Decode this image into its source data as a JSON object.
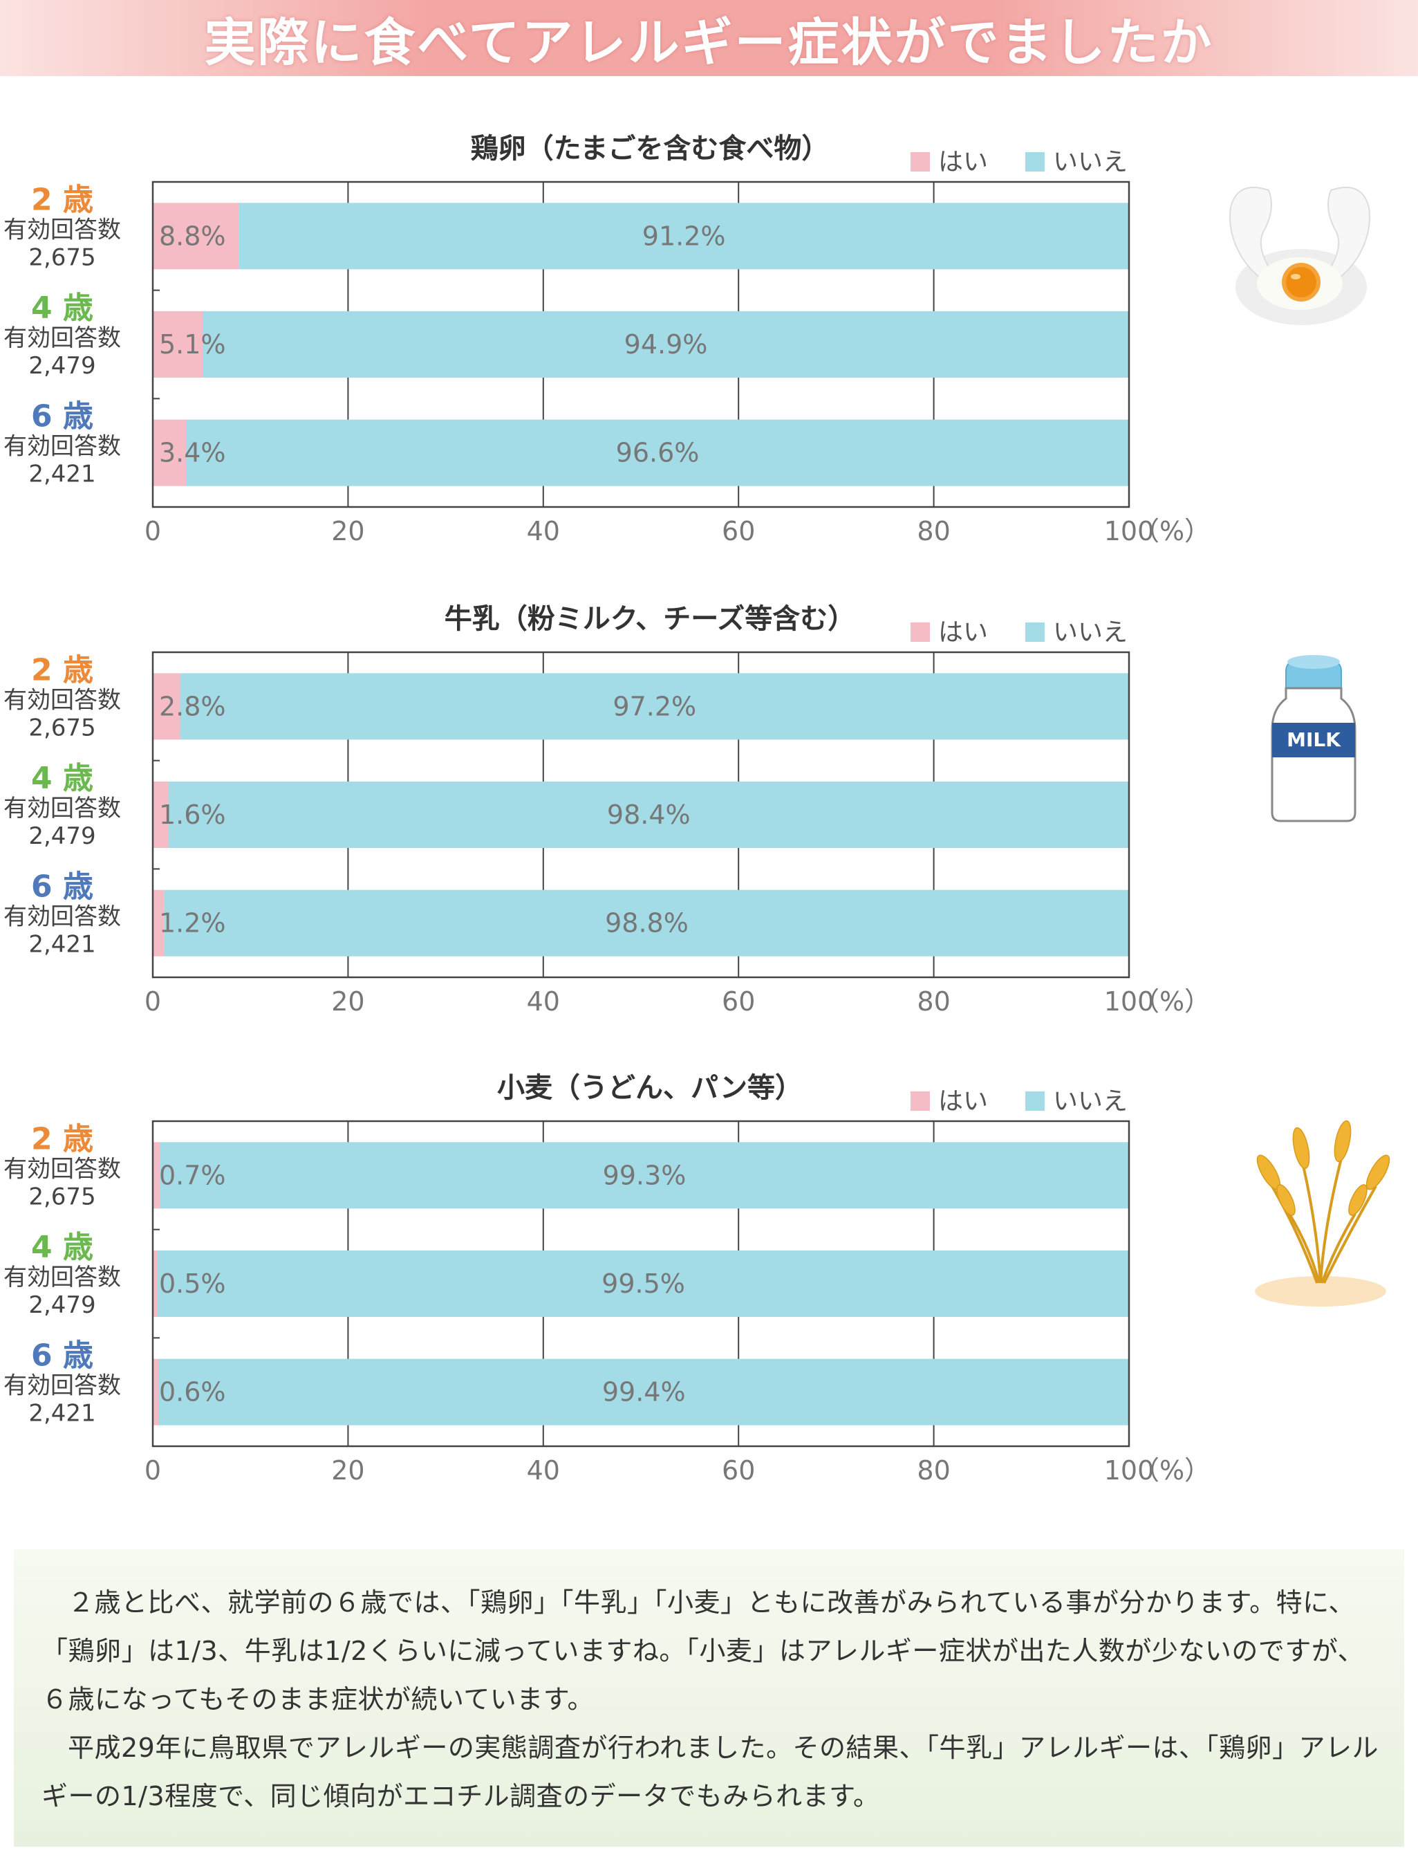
{
  "header": {
    "title": "実際に食べてアレルギー症状がでましたか"
  },
  "legend": {
    "yes": "はい",
    "no": "いいえ"
  },
  "axis": {
    "ticks": [
      "0",
      "20",
      "40",
      "60",
      "80",
      "100"
    ],
    "unit": "（%）"
  },
  "colors": {
    "yes": "#f6bcc6",
    "no": "#a3dbe7",
    "age2": "#ec8a38",
    "age4": "#6ab84e",
    "age6": "#4f79b9"
  },
  "icons": [
    "egg-icon",
    "milk-bottle-icon",
    "wheat-icon"
  ],
  "chart_data": [
    {
      "type": "bar",
      "stacked": true,
      "orientation": "horizontal",
      "title": "鶏卵（たまごを含む食べ物）",
      "categories": [
        {
          "age": "2",
          "unit": "歳",
          "label": "有効回答数",
          "count": "2,675"
        },
        {
          "age": "4",
          "unit": "歳",
          "label": "有効回答数",
          "count": "2,479"
        },
        {
          "age": "6",
          "unit": "歳",
          "label": "有効回答数",
          "count": "2,421"
        }
      ],
      "series": [
        {
          "name": "はい",
          "values": [
            8.8,
            5.1,
            3.4
          ],
          "labels": [
            "8.8%",
            "5.1%",
            "3.4%"
          ]
        },
        {
          "name": "いいえ",
          "values": [
            91.2,
            94.9,
            96.6
          ],
          "labels": [
            "91.2%",
            "94.9%",
            "96.6%"
          ]
        }
      ],
      "xlim": [
        0,
        100
      ],
      "legend_position": "top-right",
      "grid": true
    },
    {
      "type": "bar",
      "stacked": true,
      "orientation": "horizontal",
      "title": "牛乳（粉ミルク、チーズ等含む）",
      "categories": [
        {
          "age": "2",
          "unit": "歳",
          "label": "有効回答数",
          "count": "2,675"
        },
        {
          "age": "4",
          "unit": "歳",
          "label": "有効回答数",
          "count": "2,479"
        },
        {
          "age": "6",
          "unit": "歳",
          "label": "有効回答数",
          "count": "2,421"
        }
      ],
      "series": [
        {
          "name": "はい",
          "values": [
            2.8,
            1.6,
            1.2
          ],
          "labels": [
            "2.8%",
            "1.6%",
            "1.2%"
          ]
        },
        {
          "name": "いいえ",
          "values": [
            97.2,
            98.4,
            98.8
          ],
          "labels": [
            "97.2%",
            "98.4%",
            "98.8%"
          ]
        }
      ],
      "xlim": [
        0,
        100
      ],
      "legend_position": "top-right",
      "grid": true
    },
    {
      "type": "bar",
      "stacked": true,
      "orientation": "horizontal",
      "title": "小麦（うどん、パン等）",
      "categories": [
        {
          "age": "2",
          "unit": "歳",
          "label": "有効回答数",
          "count": "2,675"
        },
        {
          "age": "4",
          "unit": "歳",
          "label": "有効回答数",
          "count": "2,479"
        },
        {
          "age": "6",
          "unit": "歳",
          "label": "有効回答数",
          "count": "2,421"
        }
      ],
      "series": [
        {
          "name": "はい",
          "values": [
            0.7,
            0.5,
            0.6
          ],
          "labels": [
            "0.7%",
            "0.5%",
            "0.6%"
          ]
        },
        {
          "name": "いいえ",
          "values": [
            99.3,
            99.5,
            99.4
          ],
          "labels": [
            "99.3%",
            "99.5%",
            "99.4%"
          ]
        }
      ],
      "xlim": [
        0,
        100
      ],
      "legend_position": "top-right",
      "grid": true
    }
  ],
  "milk_label": "MILK",
  "summary": {
    "paragraph1": "２歳と比べ、就学前の６歳では、「鶏卵」「牛乳」「小麦」ともに改善がみられている事が分かります。特に、「鶏卵」は1/3、牛乳は1/2くらいに減っていますね。「小麦」はアレルギー症状が出た人数が少ないのですが、６歳になってもそのまま症状が続いています。",
    "paragraph2": "平成29年に鳥取県でアレルギーの実態調査が行われました。その結果、「牛乳」アレルギーは、「鶏卵」アレルギーの1/3程度で、同じ傾向がエコチル調査のデータでもみられます。"
  }
}
